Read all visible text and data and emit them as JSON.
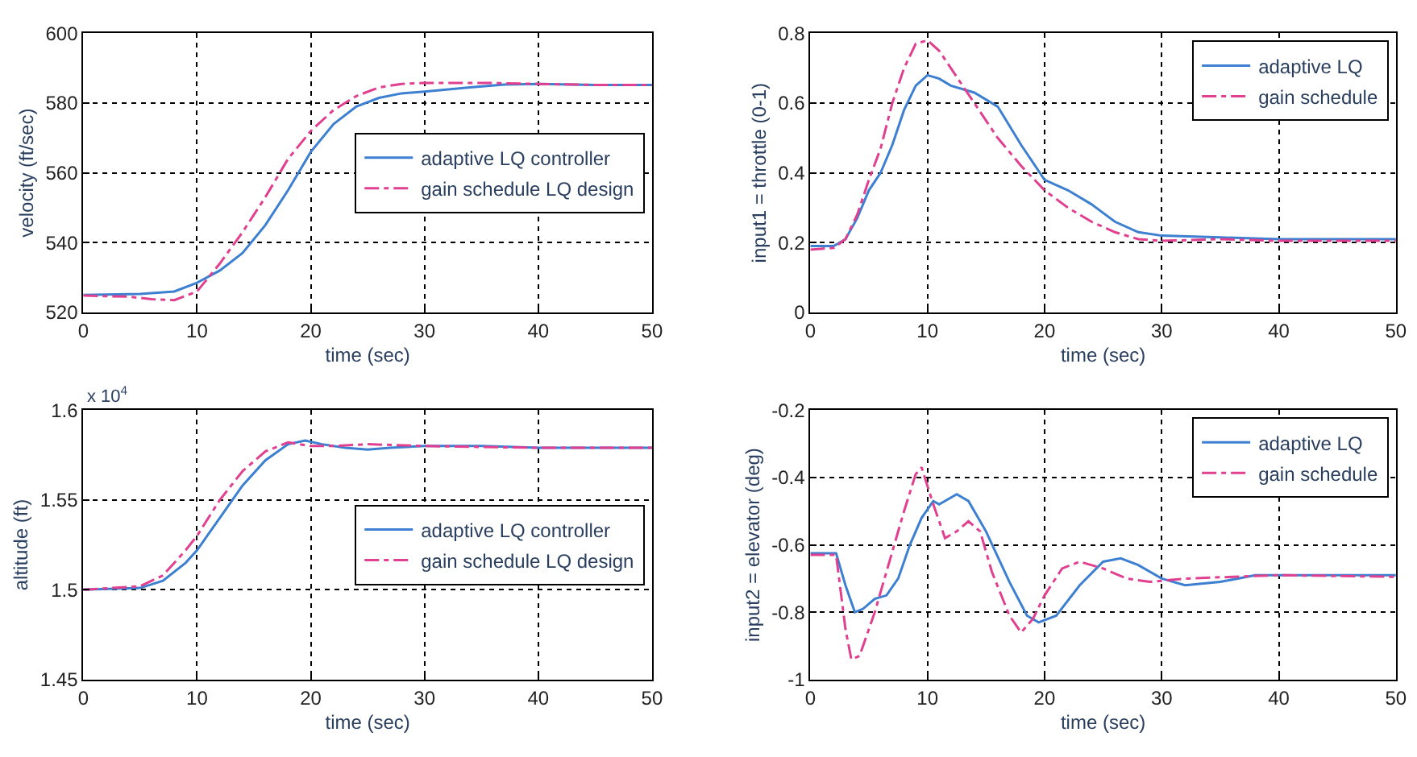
{
  "chart_data": [
    {
      "type": "line",
      "xlabel": "time (sec)",
      "ylabel": "velocity (ft/sec)",
      "xlim": [
        0,
        50
      ],
      "xticks": [
        0,
        10,
        20,
        30,
        40,
        50
      ],
      "ylim": [
        520,
        600
      ],
      "yticks": [
        520,
        540,
        560,
        580,
        600
      ],
      "grid": true,
      "legend": "right",
      "series": [
        {
          "name": "adaptive LQ controller",
          "color": "#3d7fd0",
          "line_style": "solid",
          "x": [
            0,
            5,
            8,
            10,
            12,
            14,
            16,
            18,
            20,
            22,
            24,
            26,
            28,
            30,
            34,
            37,
            40,
            45,
            50
          ],
          "values": [
            525,
            525.3,
            526,
            528.5,
            532,
            537,
            545,
            555,
            566,
            574,
            579,
            581.5,
            582.8,
            583.3,
            584.5,
            585.3,
            585.5,
            585.2,
            585.2
          ]
        },
        {
          "name": "gain schedule LQ design",
          "color": "#e0408f",
          "line_style": "dashdot",
          "x": [
            0,
            4,
            6,
            8,
            10,
            12,
            14,
            16,
            18,
            20,
            22,
            24,
            26,
            28,
            30,
            35,
            40,
            45,
            50
          ],
          "values": [
            524.8,
            524.5,
            523.8,
            523.5,
            526,
            534,
            543,
            553,
            564,
            572,
            578,
            582,
            584.5,
            585.5,
            585.8,
            585.8,
            585.5,
            585.2,
            585.2
          ]
        }
      ]
    },
    {
      "type": "line",
      "xlabel": "time (sec)",
      "ylabel": "input1 = throttle (0-1)",
      "xlim": [
        0,
        50
      ],
      "xticks": [
        0,
        10,
        20,
        30,
        40,
        50
      ],
      "ylim": [
        0,
        0.8
      ],
      "yticks": [
        0,
        0.2,
        0.4,
        0.6,
        0.8
      ],
      "grid": true,
      "legend": "top right",
      "series": [
        {
          "name": "adaptive LQ",
          "color": "#3d7fd0",
          "line_style": "solid",
          "x": [
            0,
            2,
            3,
            4,
            5,
            6,
            7,
            8,
            9,
            10,
            11,
            12,
            14,
            16,
            18,
            20,
            22,
            24,
            26,
            28,
            30,
            35,
            40,
            50
          ],
          "values": [
            0.19,
            0.19,
            0.21,
            0.27,
            0.35,
            0.4,
            0.48,
            0.58,
            0.65,
            0.68,
            0.67,
            0.65,
            0.63,
            0.59,
            0.48,
            0.38,
            0.35,
            0.31,
            0.26,
            0.23,
            0.22,
            0.215,
            0.21,
            0.21
          ]
        },
        {
          "name": "gain schedule",
          "color": "#e0408f",
          "line_style": "dashdot",
          "x": [
            0,
            2,
            3,
            4,
            5,
            6,
            7,
            8,
            9,
            10,
            11,
            12,
            14,
            16,
            18,
            20,
            22,
            24,
            26,
            28,
            30,
            35,
            40,
            50
          ],
          "values": [
            0.18,
            0.185,
            0.21,
            0.28,
            0.38,
            0.47,
            0.6,
            0.7,
            0.77,
            0.78,
            0.75,
            0.7,
            0.6,
            0.5,
            0.42,
            0.35,
            0.3,
            0.26,
            0.23,
            0.21,
            0.205,
            0.21,
            0.205,
            0.205
          ]
        }
      ]
    },
    {
      "type": "line",
      "xlabel": "time (sec)",
      "ylabel": "altitude (ft)",
      "xlim": [
        0,
        50
      ],
      "xticks": [
        0,
        10,
        20,
        30,
        40,
        50
      ],
      "ylim": [
        1.45,
        1.6
      ],
      "yticks": [
        1.45,
        1.5,
        1.55,
        1.6
      ],
      "grid": true,
      "legend": "right",
      "annotations": [
        "x 10$^{4}$"
      ],
      "series": [
        {
          "name": "adaptive LQ controller",
          "color": "#3d7fd0",
          "line_style": "solid",
          "x": [
            0,
            5,
            7,
            9,
            10,
            12,
            14,
            16,
            18,
            19.5,
            21,
            23,
            25,
            27,
            30,
            35,
            40,
            50
          ],
          "values": [
            1.5,
            1.501,
            1.505,
            1.515,
            1.522,
            1.54,
            1.558,
            1.572,
            1.581,
            1.583,
            1.581,
            1.579,
            1.578,
            1.579,
            1.58,
            1.58,
            1.579,
            1.579
          ]
        },
        {
          "name": "gain schedule LQ design",
          "color": "#e0408f",
          "line_style": "dashdot",
          "x": [
            0,
            5,
            7,
            9,
            10,
            12,
            14,
            16,
            18,
            20,
            22,
            25,
            30,
            40,
            50
          ],
          "values": [
            1.5,
            1.502,
            1.508,
            1.522,
            1.53,
            1.55,
            1.566,
            1.577,
            1.582,
            1.58,
            1.58,
            1.581,
            1.58,
            1.579,
            1.579
          ]
        }
      ]
    },
    {
      "type": "line",
      "xlabel": "time (sec)",
      "ylabel": "input2 = elevator (deg)",
      "xlim": [
        0,
        50
      ],
      "xticks": [
        0,
        10,
        20,
        30,
        40,
        50
      ],
      "ylim": [
        -1,
        -0.2
      ],
      "yticks": [
        -1,
        -0.8,
        -0.6,
        -0.4,
        -0.2
      ],
      "grid": true,
      "legend": "top right",
      "series": [
        {
          "name": "adaptive LQ",
          "color": "#3d7fd0",
          "line_style": "solid",
          "x": [
            0,
            2.2,
            3,
            3.8,
            4.5,
            5.5,
            6.5,
            7.5,
            8.5,
            9.5,
            10.5,
            11,
            12.5,
            13.5,
            15,
            17,
            18.5,
            19.5,
            21,
            23,
            25,
            26.5,
            28,
            30,
            32,
            35,
            38,
            42,
            50
          ],
          "values": [
            -0.625,
            -0.625,
            -0.72,
            -0.8,
            -0.79,
            -0.76,
            -0.75,
            -0.7,
            -0.6,
            -0.52,
            -0.47,
            -0.48,
            -0.45,
            -0.47,
            -0.56,
            -0.71,
            -0.81,
            -0.83,
            -0.81,
            -0.72,
            -0.65,
            -0.64,
            -0.66,
            -0.7,
            -0.72,
            -0.71,
            -0.69,
            -0.69,
            -0.69
          ]
        },
        {
          "name": "gain schedule",
          "color": "#e0408f",
          "line_style": "dashdot",
          "x": [
            0,
            2.2,
            3,
            3.5,
            4.2,
            5.5,
            7,
            8,
            9,
            9.5,
            10.5,
            11.5,
            12.5,
            13.5,
            14.5,
            15.5,
            17,
            18,
            19,
            20,
            21.5,
            23,
            25,
            27,
            29,
            32,
            40,
            50
          ],
          "values": [
            -0.63,
            -0.63,
            -0.85,
            -0.94,
            -0.93,
            -0.8,
            -0.62,
            -0.5,
            -0.39,
            -0.37,
            -0.48,
            -0.58,
            -0.56,
            -0.53,
            -0.56,
            -0.68,
            -0.81,
            -0.86,
            -0.82,
            -0.75,
            -0.67,
            -0.65,
            -0.67,
            -0.7,
            -0.71,
            -0.7,
            -0.69,
            -0.695
          ]
        }
      ]
    }
  ]
}
